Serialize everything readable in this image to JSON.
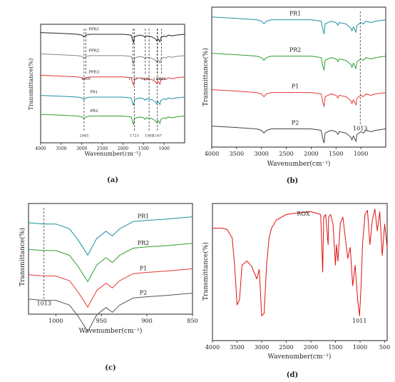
{
  "chart_data": [
    {
      "panel_label": "(a)",
      "type": "line",
      "xlabel": "Wavenumber(cm⁻¹)",
      "ylabel": "Transmittance(%)",
      "xlim": [
        4000,
        500
      ],
      "x_reversed": true,
      "x_ticks": [
        4000,
        3500,
        3000,
        2500,
        2000,
        1500,
        1000
      ],
      "series": [
        {
          "name": "PPR1",
          "color": "#222222",
          "offset": 0.93,
          "x": [
            4000,
            3500,
            3100,
            3000,
            2950,
            2900,
            2800,
            2000,
            1800,
            1760,
            1740,
            1720,
            1600,
            1500,
            1460,
            1440,
            1300,
            1200,
            1180,
            1150,
            1100,
            1080,
            1000,
            950,
            900,
            800,
            700,
            500
          ],
          "depth": [
            0,
            0.01,
            0.02,
            0.03,
            0.05,
            0.03,
            0.02,
            0.02,
            0.03,
            0.1,
            0.12,
            0.05,
            0.03,
            0.04,
            0.06,
            0.04,
            0.05,
            0.08,
            0.1,
            0.07,
            0.11,
            0.06,
            0.04,
            0.05,
            0.03,
            0.04,
            0.03,
            0.02
          ]
        },
        {
          "name": "PPR2",
          "color": "#888888",
          "offset": 0.75,
          "x": [
            4000,
            3500,
            3100,
            3000,
            2950,
            2900,
            2800,
            2000,
            1800,
            1760,
            1740,
            1720,
            1600,
            1500,
            1460,
            1440,
            1300,
            1200,
            1180,
            1150,
            1100,
            1080,
            1000,
            950,
            900,
            800,
            700,
            500
          ],
          "depth": [
            0,
            0.01,
            0.02,
            0.03,
            0.05,
            0.03,
            0.02,
            0.02,
            0.03,
            0.1,
            0.12,
            0.05,
            0.03,
            0.04,
            0.06,
            0.04,
            0.05,
            0.08,
            0.1,
            0.07,
            0.11,
            0.06,
            0.04,
            0.05,
            0.03,
            0.04,
            0.03,
            0.02
          ]
        },
        {
          "name": "PPR3",
          "color": "#e53935",
          "offset": 0.57,
          "x": [
            4000,
            3500,
            3100,
            3000,
            2950,
            2900,
            2800,
            2000,
            1800,
            1760,
            1740,
            1720,
            1600,
            1500,
            1460,
            1440,
            1300,
            1200,
            1180,
            1150,
            1100,
            1080,
            1000,
            950,
            900,
            800,
            700,
            500
          ],
          "depth": [
            0,
            0.01,
            0.02,
            0.03,
            0.05,
            0.03,
            0.02,
            0.02,
            0.03,
            0.1,
            0.12,
            0.05,
            0.03,
            0.04,
            0.06,
            0.04,
            0.05,
            0.08,
            0.1,
            0.07,
            0.11,
            0.06,
            0.04,
            0.05,
            0.03,
            0.04,
            0.03,
            0.02
          ]
        },
        {
          "name": "PR1",
          "color": "#1e90a0",
          "offset": 0.4,
          "x": [
            4000,
            3500,
            3100,
            3000,
            2950,
            2900,
            2800,
            2000,
            1800,
            1760,
            1740,
            1720,
            1600,
            1500,
            1460,
            1440,
            1300,
            1200,
            1180,
            1150,
            1100,
            1080,
            1000,
            950,
            900,
            800,
            700,
            500
          ],
          "depth": [
            0,
            0.01,
            0.02,
            0.03,
            0.05,
            0.03,
            0.02,
            0.02,
            0.03,
            0.1,
            0.12,
            0.05,
            0.03,
            0.04,
            0.06,
            0.04,
            0.05,
            0.08,
            0.1,
            0.07,
            0.11,
            0.06,
            0.04,
            0.05,
            0.03,
            0.04,
            0.03,
            0.02
          ]
        },
        {
          "name": "PR2",
          "color": "#2e9e2e",
          "offset": 0.24,
          "x": [
            4000,
            3500,
            3100,
            3000,
            2950,
            2900,
            2800,
            2000,
            1800,
            1760,
            1740,
            1720,
            1600,
            1500,
            1460,
            1440,
            1300,
            1200,
            1180,
            1150,
            1100,
            1080,
            1000,
            950,
            900,
            800,
            700,
            500
          ],
          "depth": [
            0,
            0.01,
            0.02,
            0.03,
            0.05,
            0.03,
            0.02,
            0.02,
            0.03,
            0.1,
            0.12,
            0.05,
            0.03,
            0.04,
            0.06,
            0.04,
            0.05,
            0.08,
            0.1,
            0.07,
            0.11,
            0.06,
            0.04,
            0.05,
            0.03,
            0.04,
            0.03,
            0.02
          ]
        }
      ],
      "annotations": [
        {
          "text": "2900",
          "x": 2900
        },
        {
          "text": "1757",
          "x": 1757
        },
        {
          "text": "1456",
          "x": 1456
        },
        {
          "text": "1160",
          "x": 1160
        },
        {
          "text": "1066",
          "x": 1066
        },
        {
          "text": "2945",
          "x": 2945
        },
        {
          "text": "1723",
          "x": 1723
        },
        {
          "text": "1365",
          "x": 1365
        },
        {
          "text": "1167",
          "x": 1167
        }
      ]
    },
    {
      "panel_label": "(b)",
      "type": "line",
      "xlabel": "Wavenumber(cm⁻¹)",
      "ylabel": "Transmittance(%)",
      "xlim": [
        4000,
        500
      ],
      "x_reversed": true,
      "x_ticks": [
        4000,
        3500,
        3000,
        2500,
        2000,
        1500,
        1000
      ],
      "series": [
        {
          "name": "PR1",
          "color": "#1e90a0",
          "offset": 0.93,
          "x": [
            4000,
            3500,
            3100,
            3000,
            2950,
            2900,
            2800,
            2000,
            1800,
            1760,
            1740,
            1720,
            1600,
            1500,
            1460,
            1440,
            1300,
            1200,
            1180,
            1150,
            1100,
            1080,
            1000,
            950,
            900,
            800,
            700,
            500
          ],
          "depth": [
            0,
            0.01,
            0.02,
            0.03,
            0.05,
            0.03,
            0.02,
            0.02,
            0.03,
            0.1,
            0.12,
            0.05,
            0.03,
            0.04,
            0.06,
            0.04,
            0.05,
            0.08,
            0.1,
            0.07,
            0.11,
            0.06,
            0.04,
            0.05,
            0.03,
            0.04,
            0.03,
            0.02
          ]
        },
        {
          "name": "PR2",
          "color": "#2e9e2e",
          "offset": 0.67,
          "x": [
            4000,
            3500,
            3100,
            3000,
            2950,
            2900,
            2800,
            2000,
            1800,
            1760,
            1740,
            1720,
            1600,
            1500,
            1460,
            1440,
            1300,
            1200,
            1180,
            1150,
            1100,
            1080,
            1000,
            950,
            900,
            800,
            700,
            500
          ],
          "depth": [
            0,
            0.01,
            0.02,
            0.03,
            0.05,
            0.03,
            0.02,
            0.02,
            0.03,
            0.1,
            0.12,
            0.05,
            0.03,
            0.04,
            0.06,
            0.04,
            0.05,
            0.08,
            0.1,
            0.07,
            0.11,
            0.06,
            0.04,
            0.05,
            0.03,
            0.04,
            0.03,
            0.02
          ]
        },
        {
          "name": "P1",
          "color": "#e53935",
          "offset": 0.41,
          "x": [
            4000,
            3500,
            3100,
            3000,
            2950,
            2900,
            2800,
            2000,
            1800,
            1760,
            1740,
            1720,
            1600,
            1500,
            1460,
            1440,
            1300,
            1200,
            1180,
            1150,
            1100,
            1080,
            1000,
            950,
            900,
            800,
            700,
            500
          ],
          "depth": [
            0,
            0.01,
            0.02,
            0.03,
            0.05,
            0.03,
            0.02,
            0.02,
            0.03,
            0.1,
            0.12,
            0.05,
            0.03,
            0.04,
            0.06,
            0.04,
            0.05,
            0.08,
            0.1,
            0.07,
            0.11,
            0.06,
            0.04,
            0.05,
            0.03,
            0.04,
            0.03,
            0.02
          ]
        },
        {
          "name": "P2",
          "color": "#444444",
          "offset": 0.15,
          "x": [
            4000,
            3500,
            3100,
            3000,
            2950,
            2900,
            2800,
            2000,
            1800,
            1760,
            1740,
            1720,
            1600,
            1500,
            1460,
            1440,
            1300,
            1200,
            1180,
            1150,
            1100,
            1080,
            1000,
            950,
            900,
            800,
            700,
            500
          ],
          "depth": [
            0,
            0.01,
            0.02,
            0.03,
            0.05,
            0.03,
            0.02,
            0.02,
            0.03,
            0.1,
            0.12,
            0.05,
            0.03,
            0.04,
            0.06,
            0.04,
            0.05,
            0.08,
            0.1,
            0.07,
            0.11,
            0.06,
            0.04,
            0.05,
            0.03,
            0.04,
            0.03,
            0.02
          ]
        }
      ],
      "annotations": [
        {
          "text": "1013",
          "x": 1013
        }
      ]
    },
    {
      "panel_label": "(c)",
      "type": "line",
      "xlabel": "Wavenumber(cm⁻¹)",
      "ylabel": "Transmittance(%)",
      "xlim": [
        1030,
        850
      ],
      "x_reversed": true,
      "x_ticks": [
        1000,
        950,
        900,
        850
      ],
      "series": [
        {
          "name": "PR1",
          "color": "#1e90a0",
          "offset": 0.88,
          "x": [
            1030,
            1013,
            1000,
            985,
            975,
            965,
            955,
            945,
            938,
            930,
            915,
            900,
            880,
            865,
            850
          ],
          "depth": [
            0.05,
            0.06,
            0.06,
            0.1,
            0.2,
            0.32,
            0.18,
            0.12,
            0.16,
            0.1,
            0.04,
            0.03,
            0.02,
            0.01,
            0
          ]
        },
        {
          "name": "PR2",
          "color": "#2e9e2e",
          "offset": 0.64,
          "x": [
            1030,
            1013,
            1000,
            985,
            975,
            965,
            955,
            945,
            938,
            930,
            915,
            900,
            880,
            865,
            850
          ],
          "depth": [
            0.05,
            0.06,
            0.06,
            0.1,
            0.2,
            0.32,
            0.18,
            0.12,
            0.16,
            0.1,
            0.04,
            0.03,
            0.02,
            0.01,
            0
          ]
        },
        {
          "name": "P1",
          "color": "#e53935",
          "offset": 0.41,
          "x": [
            1030,
            1013,
            1000,
            985,
            975,
            965,
            955,
            945,
            938,
            930,
            915,
            900,
            880,
            865,
            850
          ],
          "depth": [
            0.05,
            0.06,
            0.06,
            0.1,
            0.2,
            0.32,
            0.18,
            0.12,
            0.16,
            0.1,
            0.04,
            0.03,
            0.02,
            0.01,
            0
          ]
        },
        {
          "name": "P2",
          "color": "#555555",
          "offset": 0.19,
          "x": [
            1030,
            1013,
            1000,
            985,
            975,
            965,
            955,
            945,
            938,
            930,
            915,
            900,
            880,
            865,
            850
          ],
          "depth": [
            0.05,
            0.06,
            0.06,
            0.1,
            0.2,
            0.32,
            0.18,
            0.12,
            0.16,
            0.1,
            0.04,
            0.03,
            0.02,
            0.01,
            0
          ]
        }
      ],
      "annotations": [
        {
          "text": "1013",
          "x": 1013
        }
      ]
    },
    {
      "panel_label": "(d)",
      "type": "line",
      "xlabel": "Wavenumber(cm⁻¹)",
      "ylabel": "Transmittance(%)",
      "xlim": [
        4000,
        450
      ],
      "x_reversed": true,
      "x_ticks": [
        4000,
        3500,
        3000,
        2500,
        2000,
        1500,
        1000,
        500
      ],
      "series": [
        {
          "name": "ROX",
          "color": "#e01010",
          "offset": 0.0,
          "x": [
            4000,
            3800,
            3700,
            3600,
            3550,
            3500,
            3450,
            3400,
            3300,
            3200,
            3100,
            3050,
            3000,
            2950,
            2900,
            2850,
            2800,
            2700,
            2500,
            2300,
            2000,
            1800,
            1760,
            1740,
            1700,
            1650,
            1640,
            1600,
            1550,
            1500,
            1480,
            1450,
            1400,
            1350,
            1300,
            1250,
            1200,
            1150,
            1100,
            1050,
            1011,
            980,
            950,
            900,
            850,
            800,
            750,
            700,
            650,
            600,
            550,
            500,
            450
          ],
          "y": [
            0.82,
            0.82,
            0.81,
            0.75,
            0.55,
            0.26,
            0.3,
            0.55,
            0.58,
            0.54,
            0.45,
            0.52,
            0.18,
            0.2,
            0.55,
            0.75,
            0.82,
            0.88,
            0.92,
            0.93,
            0.94,
            0.92,
            0.5,
            0.9,
            0.92,
            0.7,
            0.9,
            0.92,
            0.85,
            0.55,
            0.7,
            0.58,
            0.86,
            0.9,
            0.75,
            0.6,
            0.68,
            0.4,
            0.55,
            0.3,
            0.18,
            0.4,
            0.7,
            0.92,
            0.95,
            0.7,
            0.88,
            0.96,
            0.8,
            0.94,
            0.62,
            0.85,
            0.68
          ]
        }
      ],
      "annotations": [
        {
          "text": "1011",
          "x": 1011
        }
      ]
    }
  ]
}
